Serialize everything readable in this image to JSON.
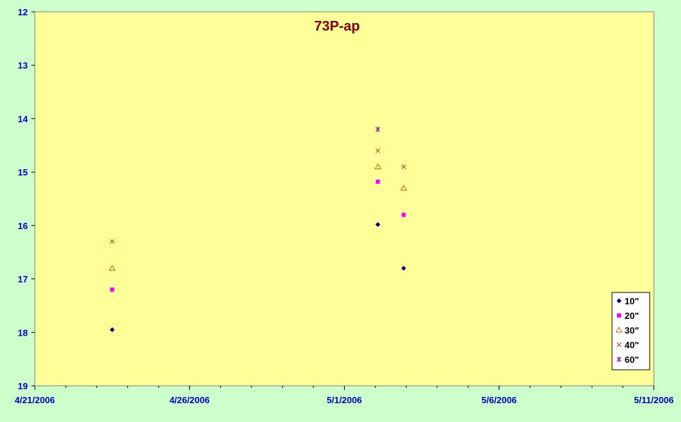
{
  "chart_data": {
    "type": "scatter",
    "title": "73P-ap",
    "xlabel": "",
    "ylabel": "",
    "x_axis": {
      "type": "date",
      "min": "2006-04-21",
      "max": "2006-05-11",
      "tick_labels": [
        "4/21/2006",
        "4/26/2006",
        "5/1/2006",
        "5/6/2006",
        "5/11/2006"
      ],
      "tick_values": [
        "2006-04-21",
        "2006-04-26",
        "2006-05-01",
        "2006-05-06",
        "2006-05-11"
      ]
    },
    "y_axis": {
      "reversed": true,
      "min": 12,
      "max": 19,
      "tick_labels": [
        "12",
        "13",
        "14",
        "15",
        "16",
        "17",
        "18",
        "19"
      ]
    },
    "grid": false,
    "legend_position": "bottom-right",
    "colors": {
      "plot_background": "#ffff99",
      "outer_background": "#ccffcc",
      "title": "#800000",
      "tick_text": "#0000cc"
    },
    "series": [
      {
        "name": "10\"",
        "marker": "diamond",
        "color": "#000080",
        "points": [
          {
            "x": "2006-04-23T12:00",
            "y": 17.95
          },
          {
            "x": "2006-05-02T02:00",
            "y": 15.98
          },
          {
            "x": "2006-05-02T22:00",
            "y": 16.8
          }
        ]
      },
      {
        "name": "20\"",
        "marker": "square",
        "color": "#ff00ff",
        "points": [
          {
            "x": "2006-04-23T12:00",
            "y": 17.2
          },
          {
            "x": "2006-05-02T02:00",
            "y": 15.18
          },
          {
            "x": "2006-05-02T22:00",
            "y": 15.8
          }
        ]
      },
      {
        "name": "30\"",
        "marker": "triangle",
        "color": "#cc6600",
        "points": [
          {
            "x": "2006-04-23T12:00",
            "y": 16.8
          },
          {
            "x": "2006-05-02T02:00",
            "y": 14.9
          },
          {
            "x": "2006-05-02T22:00",
            "y": 15.3
          }
        ]
      },
      {
        "name": "40\"",
        "marker": "x",
        "color": "#cc3300",
        "points": [
          {
            "x": "2006-04-23T12:00",
            "y": 16.3
          },
          {
            "x": "2006-05-02T02:00",
            "y": 14.6
          },
          {
            "x": "2006-05-02T22:00",
            "y": 14.9
          }
        ]
      },
      {
        "name": "60\"",
        "marker": "star",
        "color": "#800080",
        "points": [
          {
            "x": "2006-05-02T02:00",
            "y": 14.2
          }
        ]
      }
    ]
  }
}
